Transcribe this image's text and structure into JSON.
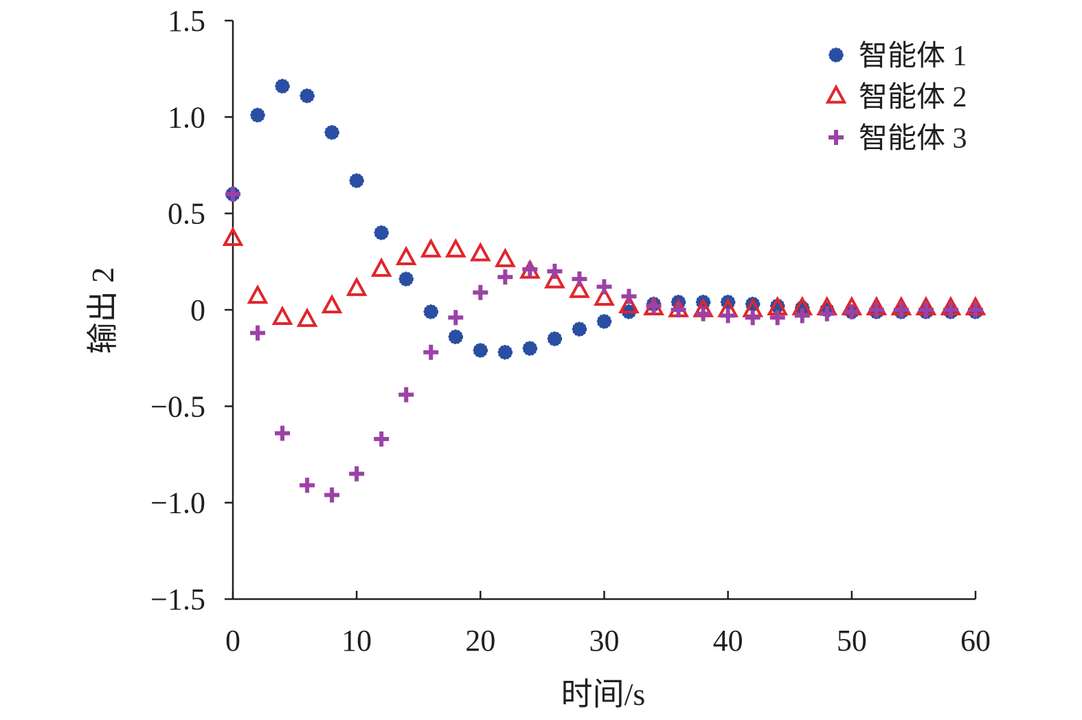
{
  "chart_data": {
    "type": "scatter",
    "title": "",
    "xlabel": "时间/s",
    "ylabel": "输出 2",
    "xlim": [
      0,
      60
    ],
    "ylim": [
      -1.5,
      1.5
    ],
    "xticks": [
      0,
      10,
      20,
      30,
      40,
      50,
      60
    ],
    "xtick_labels": [
      "0",
      "10",
      "20",
      "30",
      "40",
      "50",
      "60"
    ],
    "yticks": [
      1.5,
      1.0,
      0.5,
      0,
      -0.5,
      -1.0,
      -1.5
    ],
    "ytick_labels": [
      "1.5",
      "1.0",
      "0.5",
      "0",
      "−0.5",
      "−1.0",
      "−1.5"
    ],
    "grid": false,
    "legend_position": "top-right",
    "x": [
      0,
      2,
      4,
      6,
      8,
      10,
      12,
      14,
      16,
      18,
      20,
      22,
      24,
      26,
      28,
      30,
      32,
      34,
      36,
      38,
      40,
      42,
      44,
      46,
      48,
      50,
      52,
      54,
      56,
      58,
      60
    ],
    "series": [
      {
        "name": "智能体 1",
        "marker": "circle",
        "color": "#2a4ea2",
        "values": [
          0.6,
          1.01,
          1.16,
          1.11,
          0.92,
          0.67,
          0.4,
          0.16,
          -0.01,
          -0.14,
          -0.21,
          -0.22,
          -0.2,
          -0.15,
          -0.1,
          -0.06,
          -0.01,
          0.03,
          0.04,
          0.04,
          0.04,
          0.03,
          0.02,
          0.01,
          0.0,
          -0.01,
          -0.01,
          -0.01,
          -0.01,
          -0.01,
          -0.01
        ]
      },
      {
        "name": "智能体 2",
        "marker": "triangle",
        "color": "#e0262b",
        "values": [
          0.37,
          0.07,
          -0.04,
          -0.05,
          0.02,
          0.11,
          0.21,
          0.27,
          0.31,
          0.31,
          0.29,
          0.26,
          0.2,
          0.15,
          0.1,
          0.06,
          0.02,
          0.01,
          0.0,
          0.0,
          0.0,
          0.0,
          0.01,
          0.01,
          0.01,
          0.01,
          0.01,
          0.01,
          0.01,
          0.01,
          0.01
        ]
      },
      {
        "name": "智能体 3",
        "marker": "plus",
        "color": "#9b42a6",
        "values": [
          0.6,
          -0.12,
          -0.64,
          -0.91,
          -0.96,
          -0.85,
          -0.67,
          -0.44,
          -0.22,
          -0.04,
          0.09,
          0.17,
          0.21,
          0.2,
          0.16,
          0.12,
          0.07,
          0.02,
          0.0,
          -0.02,
          -0.03,
          -0.04,
          -0.04,
          -0.03,
          -0.02,
          -0.01,
          0.0,
          0.0,
          0.0,
          0.0,
          0.0
        ]
      }
    ]
  }
}
